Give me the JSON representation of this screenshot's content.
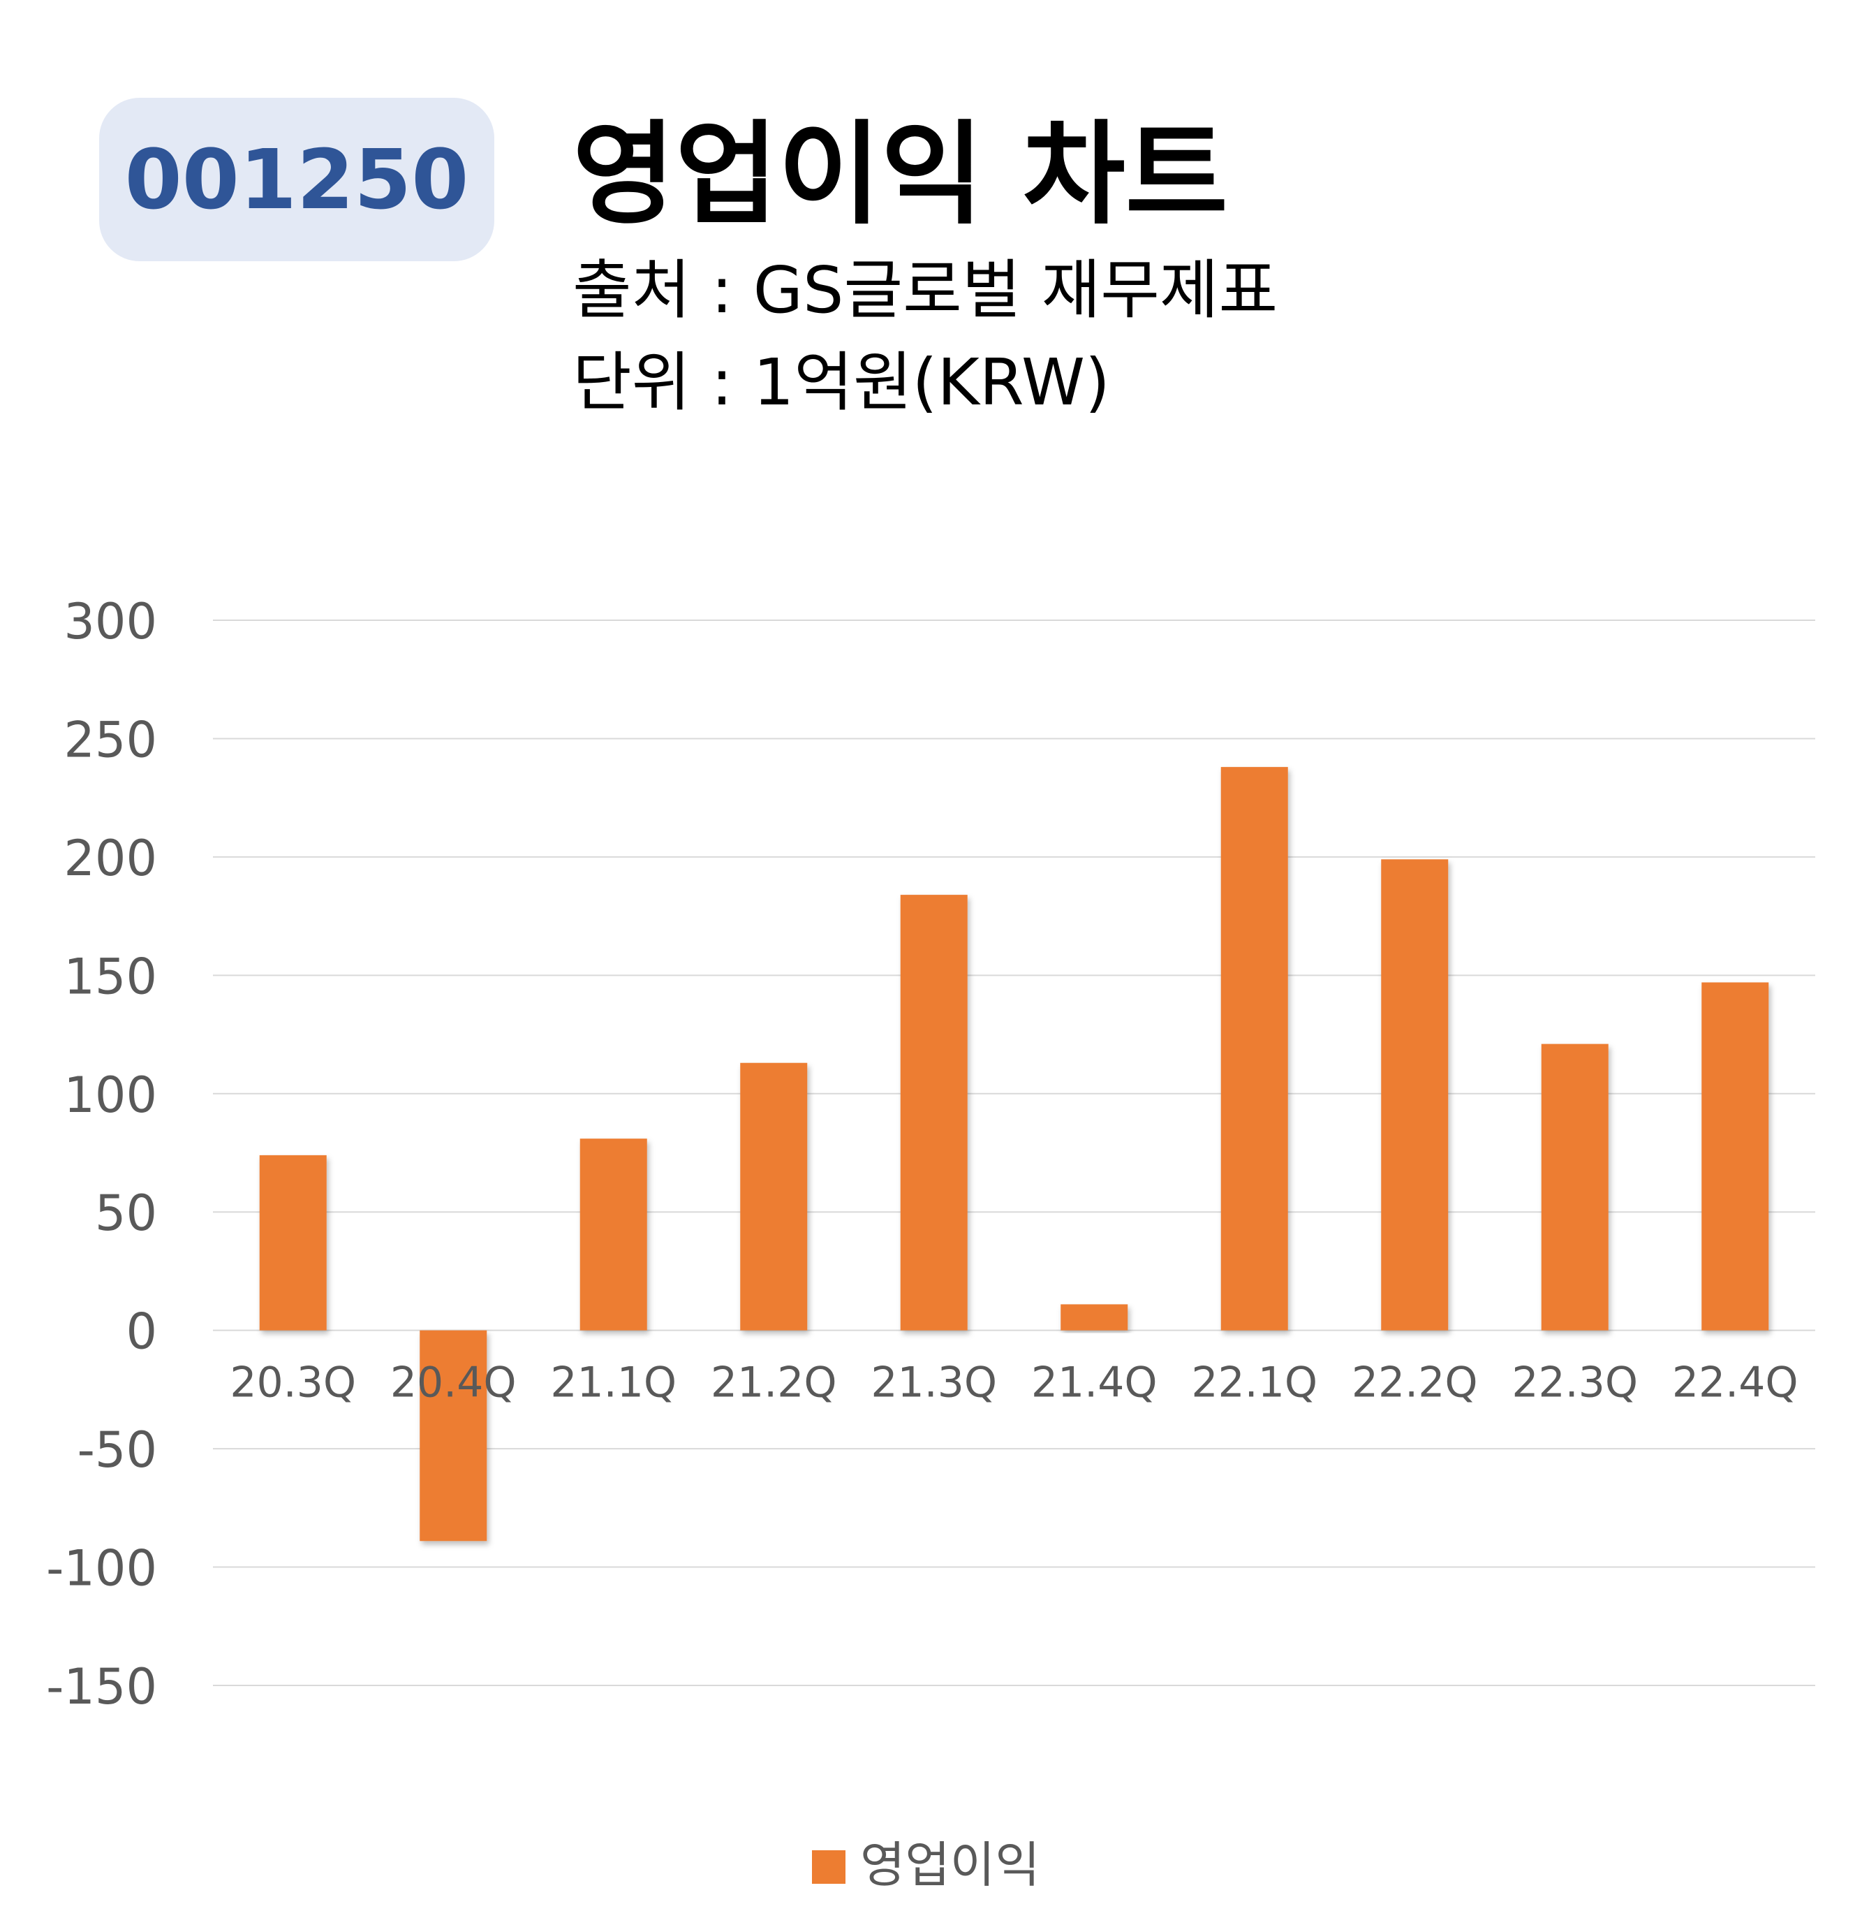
{
  "code_badge": "001250",
  "header": {
    "title": "영업이익 차트",
    "source_line": "출처 : GS글로벌 재무제표",
    "unit_line": "단위 : 1억원(KRW)"
  },
  "colors": {
    "bar": "#ed7d31",
    "badge_bg": "#e3e9f5",
    "badge_text": "#2f5597",
    "grid": "#d9d9d9",
    "tick_text": "#595959"
  },
  "chart_data": {
    "type": "bar",
    "title": "영업이익 차트",
    "categories": [
      "20.3Q",
      "20.4Q",
      "21.1Q",
      "21.2Q",
      "21.3Q",
      "21.4Q",
      "22.1Q",
      "22.2Q",
      "22.3Q",
      "22.4Q"
    ],
    "series": [
      {
        "name": "영업이익",
        "values": [
          74,
          -89,
          81,
          113,
          184,
          11,
          238,
          199,
          121,
          147
        ]
      }
    ],
    "ylim": [
      -150,
      300
    ],
    "yticks": [
      "300",
      "250",
      "200",
      "150",
      "100",
      "50",
      "0",
      "-50",
      "-100",
      "-150"
    ],
    "grid": true,
    "legend": "bottom"
  }
}
